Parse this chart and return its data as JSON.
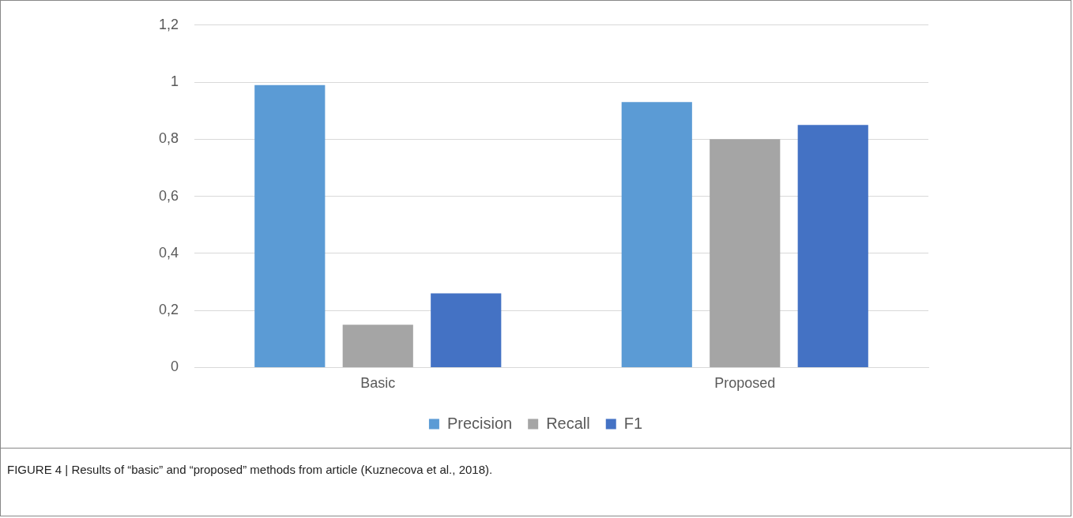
{
  "chart_data": {
    "type": "bar",
    "categories": [
      "Basic",
      "Proposed"
    ],
    "series": [
      {
        "name": "Precision",
        "color": "#5b9bd5",
        "values": [
          0.99,
          0.93
        ]
      },
      {
        "name": "Recall",
        "color": "#a5a5a5",
        "values": [
          0.15,
          0.8
        ]
      },
      {
        "name": "F1",
        "color": "#4472c4",
        "values": [
          0.26,
          0.85
        ]
      }
    ],
    "ylim": [
      0,
      1.2
    ],
    "yticks": [
      0,
      {
        "value": 0.2,
        "label": "0,2"
      },
      {
        "value": 0.4,
        "label": "0,4"
      },
      {
        "value": 0.6,
        "label": "0,6"
      },
      {
        "value": 0.8,
        "label": "0,8"
      },
      1,
      {
        "value": 1.2,
        "label": "1,2"
      }
    ],
    "grid": "y",
    "legend": "bottom",
    "annotations": [
      "FIGURE 4 | Results of “basic” and “proposed” methods from article (Kuznecova et al., 2018)."
    ]
  }
}
